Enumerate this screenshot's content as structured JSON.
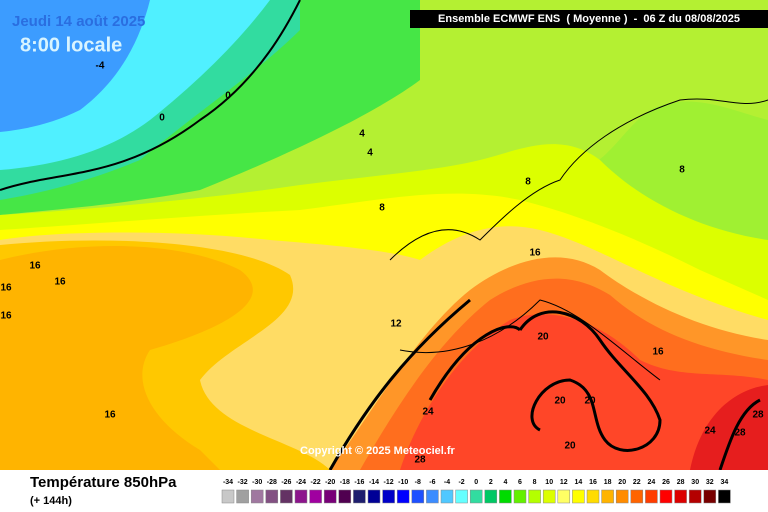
{
  "header": {
    "date": "Jeudi 14 août 2025",
    "time": "8:00 locale",
    "model": "Ensemble ECMWF ENS  ( Moyenne )  -  06 Z du 08/08/2025"
  },
  "copyright": "Copyright © 2025 Meteociel.fr",
  "footer": {
    "title": "Température 850hPa",
    "lead": "(+ 144h)"
  },
  "contour_labels": [
    -4,
    0,
    0,
    4,
    4,
    8,
    8,
    8,
    16,
    16,
    16,
    16,
    12,
    16,
    20,
    16,
    16,
    24,
    20,
    20,
    20,
    24,
    28,
    28,
    28
  ],
  "legend": {
    "ticks": [
      -34,
      -32,
      -30,
      -28,
      -26,
      -24,
      -22,
      -20,
      -18,
      -16,
      -14,
      -12,
      -10,
      -8,
      -6,
      -4,
      -2,
      0,
      2,
      4,
      6,
      8,
      10,
      12,
      14,
      16,
      18,
      20,
      22,
      24,
      26,
      28,
      30,
      32,
      34
    ],
    "colors": [
      "#c8c8c8",
      "#a0a0a0",
      "#a078a0",
      "#825082",
      "#643264",
      "#8c148c",
      "#a000a0",
      "#780078",
      "#500050",
      "#1e1e6e",
      "#000096",
      "#0000c8",
      "#0000ff",
      "#1e50ff",
      "#3c8cff",
      "#50c8ff",
      "#64ffff",
      "#32dca0",
      "#00c864",
      "#00dc00",
      "#64f000",
      "#b4ff00",
      "#dcff00",
      "#ffff64",
      "#ffff00",
      "#ffdc00",
      "#ffb400",
      "#ff8c00",
      "#ff6400",
      "#ff3c00",
      "#ff0000",
      "#dc0000",
      "#b40000",
      "#780000",
      "#000000"
    ]
  }
}
